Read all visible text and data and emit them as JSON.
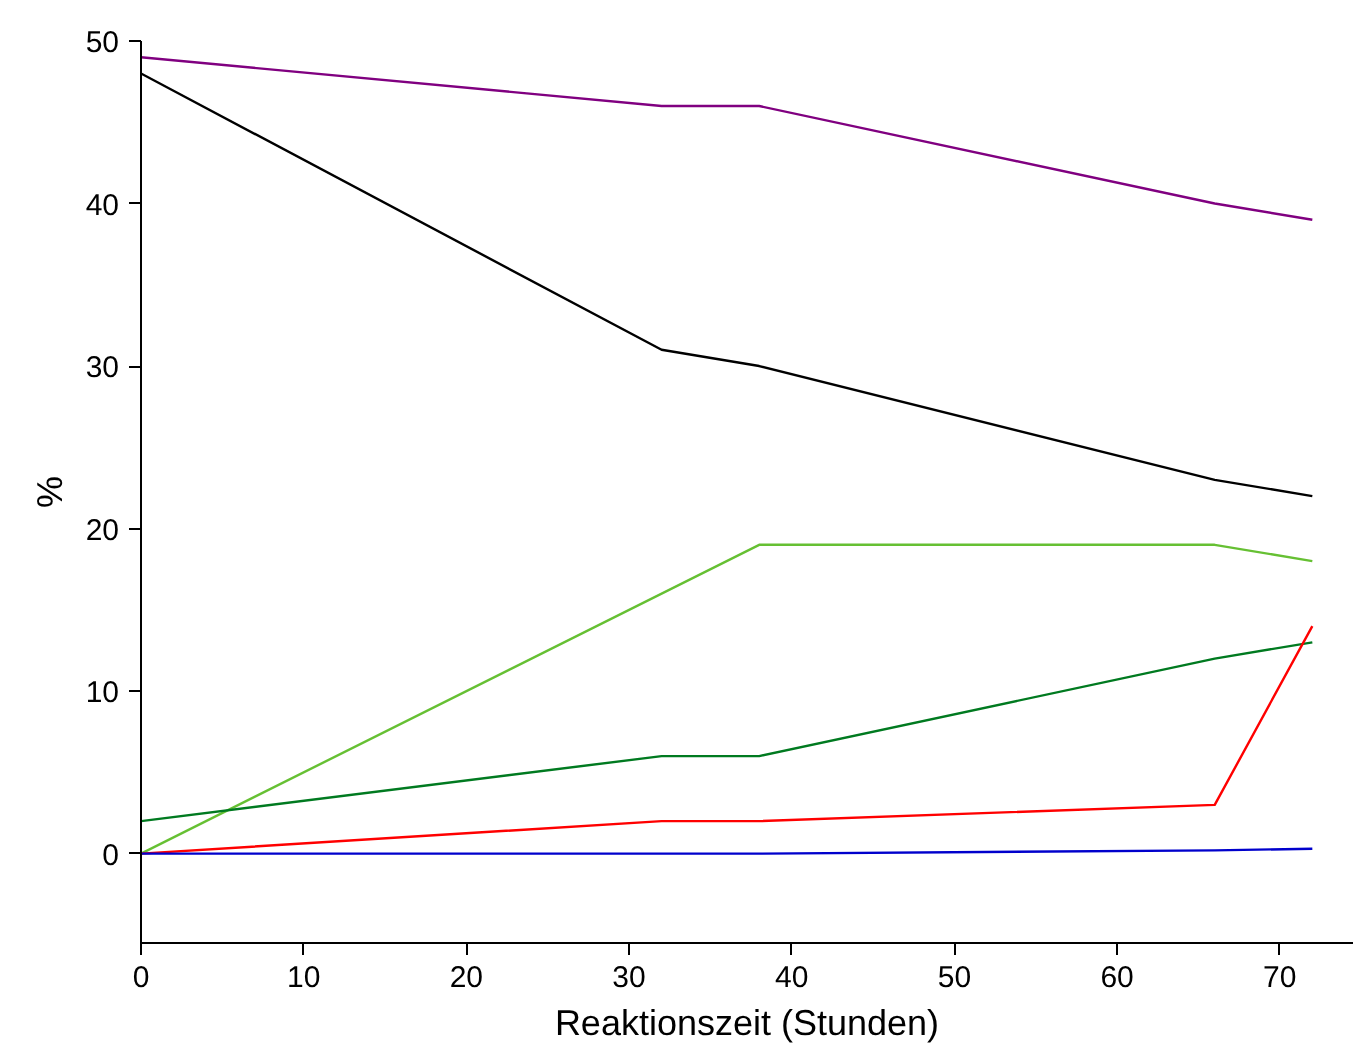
{
  "chart_data": {
    "type": "line",
    "xlabel": "Reaktionszeit (Stunden)",
    "ylabel": "%",
    "x": [
      0,
      32,
      38,
      66,
      72
    ],
    "series": [
      {
        "color": "#800080",
        "values": [
          49,
          46,
          46,
          40,
          39
        ]
      },
      {
        "color": "#000000",
        "values": [
          48,
          31,
          30,
          23,
          22
        ]
      },
      {
        "color": "#66c033",
        "x": [
          0,
          38,
          66,
          72
        ],
        "values": [
          0,
          19,
          19,
          18
        ]
      },
      {
        "color": "#007a20",
        "values": [
          2,
          6,
          6,
          12,
          13
        ]
      },
      {
        "color": "#ff0000",
        "values": [
          0,
          2,
          2,
          3,
          14
        ]
      },
      {
        "color": "#0000cc",
        "x": [
          0,
          38,
          66,
          72
        ],
        "values": [
          0,
          0,
          0.2,
          0.3
        ]
      }
    ],
    "xlim": [
      0,
      74.5
    ],
    "ylim": [
      -5.5,
      50
    ],
    "xticks": [
      0,
      10,
      20,
      30,
      40,
      50,
      60,
      70
    ],
    "yticks": [
      0,
      10,
      20,
      30,
      40,
      50
    ],
    "grid": false,
    "marker": "none",
    "line_style": "solid"
  }
}
